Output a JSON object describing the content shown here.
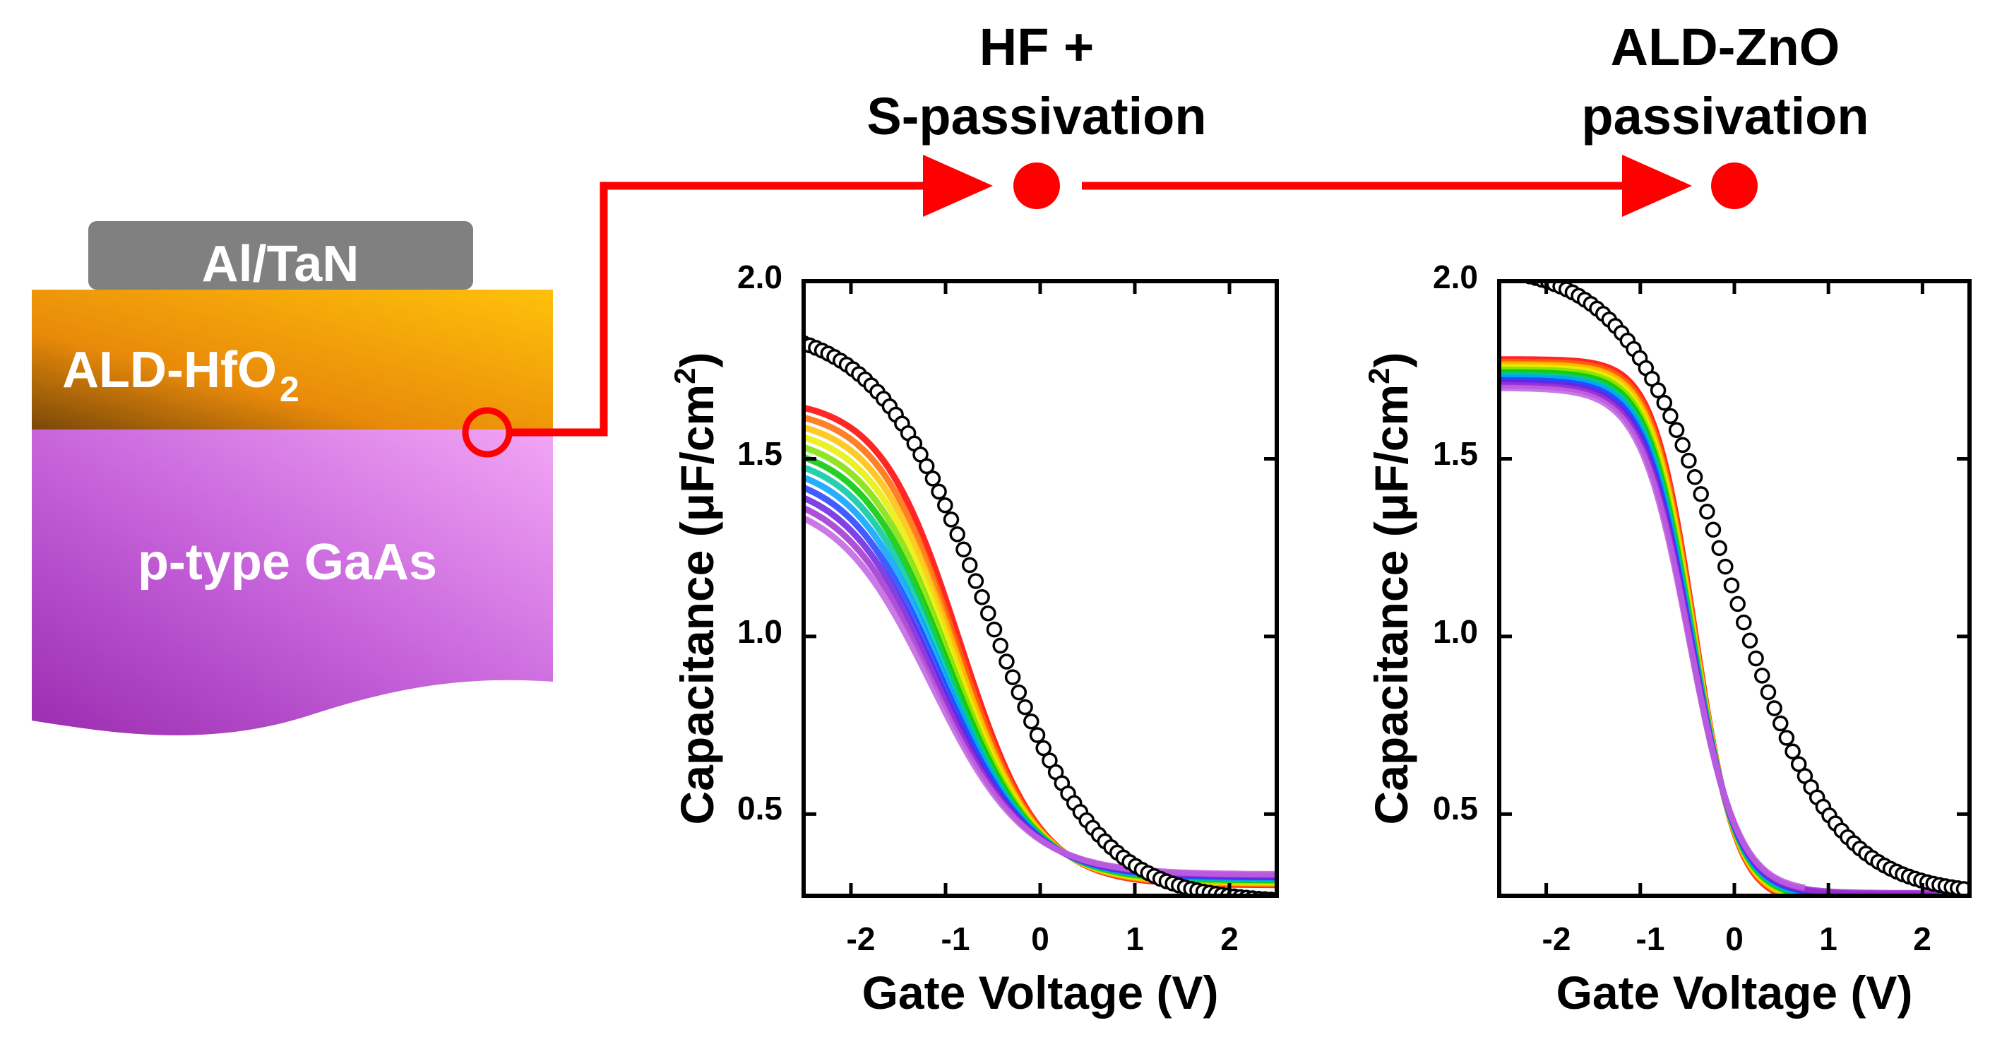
{
  "stack": {
    "gate": "Al/TaN",
    "oxide_main": "ALD-HfO",
    "oxide_sub": "2",
    "substrate": "p-type GaAs"
  },
  "steps": {
    "step1": {
      "line1": "HF +",
      "line2": "S-passivation"
    },
    "step2": {
      "line1": "ALD-ZnO",
      "line2": "passivation"
    }
  },
  "colors": {
    "arrow": "#ff0000",
    "gate_fill": "#808080",
    "open_marker_stroke": "#000000",
    "freq_sweep": [
      "#ff0000",
      "#ff6a00",
      "#ffc000",
      "#e6ee00",
      "#7ee000",
      "#00c800",
      "#00c8a0",
      "#00a0ff",
      "#2040ff",
      "#6a20e0",
      "#a030d0",
      "#c060e0"
    ]
  },
  "chart_data": [
    {
      "type": "line",
      "panel": "HF + S-passivation",
      "xlabel": "Gate Voltage (V)",
      "ylabel_main": "Capacitance (",
      "ylabel_mu": "μ",
      "ylabel_unit": "F/cm",
      "ylabel_sup": "2",
      "ylabel_close": ")",
      "xlim": [
        -2.5,
        2.5
      ],
      "ylim": [
        0.27,
        2.0
      ],
      "xticks": [
        -2,
        -1,
        0,
        1,
        2
      ],
      "xtick_labels": [
        "-2",
        "-1",
        "0",
        "1",
        "2"
      ],
      "yticks": [
        0.5,
        1.0,
        1.5,
        2.0
      ],
      "ytick_labels": [
        "0.5",
        "1.0",
        "1.5",
        "2.0"
      ],
      "open_circles": {
        "name": "reference (open circles)",
        "model": {
          "cmin": 0.25,
          "cmax": 1.88,
          "v0": -0.55,
          "w": 0.58
        }
      },
      "sweep": {
        "name": "multi-frequency C-V curves",
        "count": 12,
        "cmin_first": 0.3,
        "cmin_last": 0.33,
        "cmax_first": 1.67,
        "cmax_last": 1.4,
        "v0_first": -0.85,
        "v0_last": -1.15,
        "w_first": 0.42,
        "w_last": 0.5
      }
    },
    {
      "type": "line",
      "panel": "ALD-ZnO passivation",
      "xlabel": "Gate Voltage (V)",
      "ylabel_main": "Capacitance (",
      "ylabel_mu": "μ",
      "ylabel_unit": "F/cm",
      "ylabel_sup": "2",
      "ylabel_close": ")",
      "xlim": [
        -2.5,
        2.5
      ],
      "ylim": [
        0.27,
        2.0
      ],
      "xticks": [
        -2,
        -1,
        0,
        1,
        2
      ],
      "xtick_labels": [
        "-2",
        "-1",
        "0",
        "1",
        "2"
      ],
      "yticks": [
        0.5,
        1.0,
        1.5,
        2.0
      ],
      "ytick_labels": [
        "0.5",
        "1.0",
        "1.5",
        "2.0"
      ],
      "open_circles": {
        "name": "reference (open circles)",
        "model": {
          "cmin": 0.27,
          "cmax": 2.05,
          "v0": -0.05,
          "w": 0.55
        }
      },
      "sweep": {
        "name": "multi-frequency C-V curves",
        "count": 12,
        "cmin_first": 0.25,
        "cmin_last": 0.28,
        "cmax_first": 1.78,
        "cmax_last": 1.7,
        "v0_first": -0.42,
        "v0_last": -0.48,
        "w_first": 0.22,
        "w_last": 0.26,
        "truncate_last_at_v": 0.78
      }
    }
  ]
}
